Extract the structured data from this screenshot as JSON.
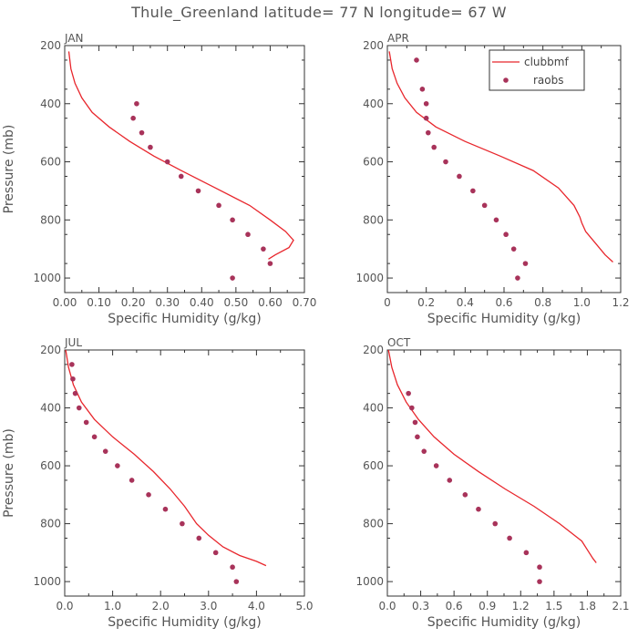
{
  "title": "Thule_Greenland  latitude= 77 N longitude= 67 W",
  "colors": {
    "model": "#e8262c",
    "obs": "#a8335a",
    "axis": "#333333",
    "text": "#555555"
  },
  "chart_data": [
    {
      "type": "line",
      "panel": "JAN",
      "xlabel": "Specific Humidity (g/kg)",
      "ylabel": "Pressure (mb)",
      "xlim": [
        0,
        0.7
      ],
      "ylim": [
        200,
        1050
      ],
      "xticks": [
        "0.00",
        "0.10",
        "0.20",
        "0.30",
        "0.40",
        "0.50",
        "0.60",
        "0.70"
      ],
      "yticks": [
        "200",
        "400",
        "600",
        "800",
        "1000"
      ],
      "legend": null,
      "series": [
        {
          "name": "clubbmf",
          "kind": "line",
          "points": [
            [
              0.012,
              220
            ],
            [
              0.018,
              280
            ],
            [
              0.03,
              330
            ],
            [
              0.05,
              380
            ],
            [
              0.08,
              430
            ],
            [
              0.13,
              480
            ],
            [
              0.19,
              530
            ],
            [
              0.26,
              580
            ],
            [
              0.34,
              630
            ],
            [
              0.44,
              690
            ],
            [
              0.54,
              750
            ],
            [
              0.6,
              800
            ],
            [
              0.645,
              840
            ],
            [
              0.668,
              870
            ],
            [
              0.655,
              895
            ],
            [
              0.615,
              920
            ],
            [
              0.595,
              935
            ]
          ]
        },
        {
          "name": "raobs",
          "kind": "scatter",
          "points": [
            [
              0.21,
              400
            ],
            [
              0.2,
              450
            ],
            [
              0.225,
              500
            ],
            [
              0.25,
              550
            ],
            [
              0.3,
              600
            ],
            [
              0.34,
              650
            ],
            [
              0.39,
              700
            ],
            [
              0.45,
              750
            ],
            [
              0.49,
              800
            ],
            [
              0.535,
              850
            ],
            [
              0.58,
              900
            ],
            [
              0.6,
              950
            ],
            [
              0.49,
              1000
            ]
          ]
        }
      ]
    },
    {
      "type": "line",
      "panel": "APR",
      "xlabel": "Specific Humidity (g/kg)",
      "ylabel": "",
      "xlim": [
        0,
        1.2
      ],
      "ylim": [
        200,
        1050
      ],
      "xticks": [
        "0",
        "0.2",
        "0.4",
        "0.6",
        "0.8",
        "1.0",
        "1.2"
      ],
      "yticks": [
        "200",
        "400",
        "600",
        "800",
        "1000"
      ],
      "legend": {
        "entries": [
          "clubbmf",
          "raobs"
        ]
      },
      "series": [
        {
          "name": "clubbmf",
          "kind": "line",
          "points": [
            [
              0.01,
              220
            ],
            [
              0.025,
              280
            ],
            [
              0.05,
              330
            ],
            [
              0.09,
              380
            ],
            [
              0.15,
              430
            ],
            [
              0.25,
              480
            ],
            [
              0.4,
              530
            ],
            [
              0.58,
              580
            ],
            [
              0.75,
              630
            ],
            [
              0.88,
              690
            ],
            [
              0.96,
              750
            ],
            [
              0.99,
              790
            ],
            [
              1.0,
              810
            ],
            [
              1.02,
              840
            ],
            [
              1.07,
              880
            ],
            [
              1.12,
              920
            ],
            [
              1.16,
              945
            ]
          ]
        },
        {
          "name": "raobs",
          "kind": "scatter",
          "points": [
            [
              0.15,
              250
            ],
            [
              0.18,
              350
            ],
            [
              0.2,
              400
            ],
            [
              0.2,
              450
            ],
            [
              0.21,
              500
            ],
            [
              0.24,
              550
            ],
            [
              0.3,
              600
            ],
            [
              0.37,
              650
            ],
            [
              0.44,
              700
            ],
            [
              0.5,
              750
            ],
            [
              0.56,
              800
            ],
            [
              0.61,
              850
            ],
            [
              0.65,
              900
            ],
            [
              0.71,
              950
            ],
            [
              0.67,
              1000
            ]
          ]
        }
      ]
    },
    {
      "type": "line",
      "panel": "JUL",
      "xlabel": "Specific Humidity (g/kg)",
      "ylabel": "Pressure (mb)",
      "xlim": [
        0,
        5.0
      ],
      "ylim": [
        200,
        1050
      ],
      "xticks": [
        "0.0",
        "1.0",
        "2.0",
        "3.0",
        "4.0",
        "5.0"
      ],
      "yticks": [
        "200",
        "400",
        "600",
        "800",
        "1000"
      ],
      "legend": null,
      "series": [
        {
          "name": "clubbmf",
          "kind": "line",
          "points": [
            [
              0.02,
              200
            ],
            [
              0.08,
              260
            ],
            [
              0.18,
              320
            ],
            [
              0.35,
              380
            ],
            [
              0.62,
              440
            ],
            [
              1.0,
              500
            ],
            [
              1.45,
              560
            ],
            [
              1.85,
              620
            ],
            [
              2.2,
              680
            ],
            [
              2.5,
              740
            ],
            [
              2.75,
              800
            ],
            [
              3.0,
              840
            ],
            [
              3.3,
              880
            ],
            [
              3.65,
              910
            ],
            [
              4.0,
              930
            ],
            [
              4.2,
              945
            ]
          ]
        },
        {
          "name": "raobs",
          "kind": "scatter",
          "points": [
            [
              0.15,
              250
            ],
            [
              0.17,
              300
            ],
            [
              0.22,
              350
            ],
            [
              0.3,
              400
            ],
            [
              0.45,
              450
            ],
            [
              0.62,
              500
            ],
            [
              0.85,
              550
            ],
            [
              1.1,
              600
            ],
            [
              1.4,
              650
            ],
            [
              1.75,
              700
            ],
            [
              2.1,
              750
            ],
            [
              2.45,
              800
            ],
            [
              2.8,
              850
            ],
            [
              3.15,
              900
            ],
            [
              3.5,
              950
            ],
            [
              3.58,
              1000
            ]
          ]
        }
      ]
    },
    {
      "type": "line",
      "panel": "OCT",
      "xlabel": "Specific Humidity (g/kg)",
      "ylabel": "",
      "xlim": [
        0,
        2.1
      ],
      "ylim": [
        200,
        1050
      ],
      "xticks": [
        "0.0",
        "0.3",
        "0.6",
        "0.9",
        "1.2",
        "1.5",
        "1.8",
        "2.1"
      ],
      "yticks": [
        "200",
        "400",
        "600",
        "800",
        "1000"
      ],
      "legend": null,
      "series": [
        {
          "name": "clubbmf",
          "kind": "line",
          "points": [
            [
              0.01,
              200
            ],
            [
              0.04,
              260
            ],
            [
              0.09,
              320
            ],
            [
              0.17,
              380
            ],
            [
              0.28,
              440
            ],
            [
              0.42,
              500
            ],
            [
              0.6,
              560
            ],
            [
              0.82,
              620
            ],
            [
              1.06,
              680
            ],
            [
              1.32,
              740
            ],
            [
              1.55,
              800
            ],
            [
              1.75,
              860
            ],
            [
              1.8,
              890
            ],
            [
              1.85,
              920
            ],
            [
              1.88,
              935
            ]
          ]
        },
        {
          "name": "raobs",
          "kind": "scatter",
          "points": [
            [
              0.19,
              350
            ],
            [
              0.22,
              400
            ],
            [
              0.25,
              450
            ],
            [
              0.27,
              500
            ],
            [
              0.33,
              550
            ],
            [
              0.44,
              600
            ],
            [
              0.56,
              650
            ],
            [
              0.7,
              700
            ],
            [
              0.82,
              750
            ],
            [
              0.97,
              800
            ],
            [
              1.1,
              850
            ],
            [
              1.25,
              900
            ],
            [
              1.37,
              950
            ],
            [
              1.37,
              1000
            ]
          ]
        }
      ]
    }
  ]
}
